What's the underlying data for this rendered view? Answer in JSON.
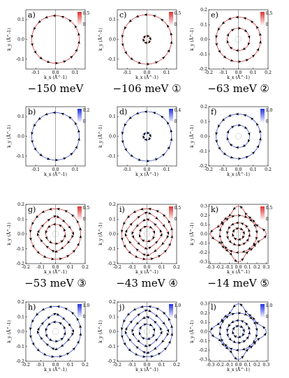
{
  "chart_data": [
    {
      "panel": "a)",
      "type": "vector-field",
      "colormap": "red",
      "colorbar": {
        "min": "0",
        "max": "0.5"
      },
      "xlim": [
        -0.15,
        0.15
      ],
      "ylim": [
        -0.15,
        0.15
      ],
      "xticks": [
        "-0.1",
        "0.0",
        "0.1"
      ],
      "yticks": [
        "-0.1",
        "0.0",
        "0.1"
      ],
      "xlabel": "k_x (Å^-1)",
      "ylabel": "k_y (Å^-1)",
      "contours": [
        {
          "shape": "circle",
          "radius": 0.12,
          "spin": "ccw",
          "arrows": 18
        }
      ],
      "vline": true
    },
    {
      "panel": "b)",
      "type": "vector-field",
      "colormap": "blue",
      "colorbar": {
        "min": "0",
        "max": "0.2"
      },
      "xlim": [
        -0.15,
        0.15
      ],
      "ylim": [
        -0.15,
        0.15
      ],
      "xticks": [
        "-0.1",
        "0.0",
        "0.1"
      ],
      "yticks": [
        "-0.1",
        "0.0",
        "0.1"
      ],
      "xlabel": "k_x (Å^-1)",
      "ylabel": "k_y (Å^-1)",
      "contours": [
        {
          "shape": "circle",
          "radius": 0.12,
          "spin": "ccw",
          "arrows": 18
        }
      ],
      "vline": true
    },
    {
      "panel": "c)",
      "type": "vector-field",
      "colormap": "red",
      "colorbar": {
        "min": "0",
        "max": "0.5"
      },
      "xlim": [
        -0.15,
        0.15
      ],
      "ylim": [
        -0.15,
        0.15
      ],
      "xticks": [
        "-0.1",
        "0.0",
        "0.1"
      ],
      "yticks": [
        "-0.1",
        "0.0",
        "0.1"
      ],
      "xlabel": "k_x (Å^-1)",
      "ylabel": "k_y (Å^-1)",
      "contours": [
        {
          "shape": "circle",
          "radius": 0.125,
          "spin": "ccw",
          "arrows": 18
        },
        {
          "shape": "circle",
          "radius": 0.017,
          "spin": "cw",
          "arrows": 6
        }
      ],
      "vline": true
    },
    {
      "panel": "d)",
      "type": "vector-field",
      "colormap": "blue",
      "colorbar": {
        "min": "0",
        "max": "0.4"
      },
      "xlim": [
        -0.15,
        0.15
      ],
      "ylim": [
        -0.15,
        0.15
      ],
      "xticks": [
        "-0.1",
        "0.0",
        "0.1"
      ],
      "yticks": [
        "-0.1",
        "0.0",
        "0.1"
      ],
      "xlabel": "k_x (Å^-1)",
      "ylabel": "k_y (Å^-1)",
      "contours": [
        {
          "shape": "circle",
          "radius": 0.125,
          "spin": "ccw",
          "arrows": 18
        },
        {
          "shape": "circle",
          "radius": 0.017,
          "spin": "cw",
          "arrows": 6
        }
      ],
      "vline": true
    },
    {
      "panel": "e)",
      "type": "vector-field",
      "colormap": "red",
      "colorbar": {
        "min": "0",
        "max": "0.5"
      },
      "xlim": [
        -0.2,
        0.2
      ],
      "ylim": [
        -0.2,
        0.2
      ],
      "xticks": [
        "-0.2",
        "-0.1",
        "0.0",
        "0.1",
        "0.2"
      ],
      "yticks": [
        "-0.2",
        "-0.1",
        "0.0",
        "0.1",
        "0.2"
      ],
      "xlabel": "k_x (Å^-1)",
      "ylabel": "k_y (Å^-1)",
      "contours": [
        {
          "shape": "circle",
          "radius": 0.15,
          "spin": "ccw",
          "arrows": 18
        },
        {
          "shape": "circle",
          "radius": 0.075,
          "spin": "cw",
          "arrows": 10
        },
        {
          "shape": "circle",
          "radius": 0.02,
          "spin": "none",
          "arrows": 0
        }
      ],
      "vline": true
    },
    {
      "panel": "f)",
      "type": "vector-field",
      "colormap": "blue",
      "colorbar": {
        "min": "0",
        "max": "1.0"
      },
      "xlim": [
        -0.2,
        0.2
      ],
      "ylim": [
        -0.2,
        0.2
      ],
      "xticks": [
        "-0.2",
        "-0.1",
        "0.0",
        "0.1",
        "0.2"
      ],
      "yticks": [
        "-0.2",
        "-0.1",
        "0.0",
        "0.1",
        "0.2"
      ],
      "xlabel": "k_x (Å^-1)",
      "ylabel": "k_y (Å^-1)",
      "contours": [
        {
          "shape": "circle",
          "radius": 0.15,
          "spin": "ccw",
          "arrows": 18
        },
        {
          "shape": "circle",
          "radius": 0.075,
          "spin": "cw",
          "arrows": 10
        },
        {
          "shape": "circle",
          "radius": 0.02,
          "spin": "none",
          "arrows": 0
        }
      ],
      "vline": false
    },
    {
      "panel": "g)",
      "type": "vector-field",
      "colormap": "red",
      "colorbar": {
        "min": "0",
        "max": "0.5"
      },
      "xlim": [
        -0.2,
        0.2
      ],
      "ylim": [
        -0.2,
        0.2
      ],
      "xticks": [
        "-0.2",
        "-0.1",
        "0.0",
        "0.1",
        "0.2"
      ],
      "yticks": [
        "-0.2",
        "-0.1",
        "0.0",
        "0.1",
        "0.2"
      ],
      "xlabel": "k_x (Å^-1)",
      "ylabel": "k_y (Å^-1)",
      "contours": [
        {
          "shape": "circle",
          "radius": 0.17,
          "spin": "ccw",
          "arrows": 20
        },
        {
          "shape": "diamond",
          "radius": 0.12,
          "spin": "cw",
          "arrows": 16
        },
        {
          "shape": "circle",
          "radius": 0.065,
          "spin": "ccw",
          "arrows": 10
        },
        {
          "shape": "circle",
          "radius": 0.02,
          "spin": "none",
          "arrows": 0
        }
      ],
      "vline": true
    },
    {
      "panel": "h)",
      "type": "vector-field",
      "colormap": "blue",
      "colorbar": {
        "min": "0",
        "max": "1.0"
      },
      "xlim": [
        -0.2,
        0.2
      ],
      "ylim": [
        -0.2,
        0.2
      ],
      "xticks": [
        "-0.2",
        "-0.1",
        "0.0",
        "0.1",
        "0.2"
      ],
      "yticks": [
        "-0.2",
        "-0.1",
        "0.0",
        "0.1",
        "0.2"
      ],
      "xlabel": "k_x (Å^-1)",
      "ylabel": "k_y (Å^-1)",
      "contours": [
        {
          "shape": "circle",
          "radius": 0.17,
          "spin": "ccw",
          "arrows": 20
        },
        {
          "shape": "diamond",
          "radius": 0.12,
          "spin": "cw",
          "arrows": 16
        },
        {
          "shape": "circle",
          "radius": 0.065,
          "spin": "ccw",
          "arrows": 10
        },
        {
          "shape": "circle",
          "radius": 0.02,
          "spin": "none",
          "arrows": 0
        }
      ],
      "vline": false
    },
    {
      "panel": "i)",
      "type": "vector-field",
      "colormap": "red",
      "colorbar": {
        "min": "0",
        "max": "0.5"
      },
      "xlim": [
        -0.2,
        0.2
      ],
      "ylim": [
        -0.2,
        0.2
      ],
      "xticks": [
        "-0.2",
        "-0.1",
        "0.0",
        "0.1",
        "0.2"
      ],
      "yticks": [
        "-0.2",
        "-0.1",
        "0.0",
        "0.1",
        "0.2"
      ],
      "xlabel": "k_x (Å^-1)",
      "ylabel": "k_y (Å^-1)",
      "contours": [
        {
          "shape": "circle",
          "radius": 0.17,
          "spin": "ccw",
          "arrows": 20
        },
        {
          "shape": "diamond",
          "radius": 0.145,
          "spin": "cw",
          "arrows": 16
        },
        {
          "shape": "diamond",
          "radius": 0.1,
          "spin": "ccw",
          "arrows": 12
        },
        {
          "shape": "circle",
          "radius": 0.05,
          "spin": "cw",
          "arrows": 8
        },
        {
          "shape": "circle",
          "radius": 0.02,
          "spin": "none",
          "arrows": 0
        }
      ],
      "vline": true
    },
    {
      "panel": "j)",
      "type": "vector-field",
      "colormap": "blue",
      "colorbar": {
        "min": "0",
        "max": "1.0"
      },
      "xlim": [
        -0.2,
        0.2
      ],
      "ylim": [
        -0.2,
        0.2
      ],
      "xticks": [
        "-0.2",
        "-0.1",
        "0.0",
        "0.1",
        "0.2"
      ],
      "yticks": [
        "-0.2",
        "-0.1",
        "0.0",
        "0.1",
        "0.2"
      ],
      "xlabel": "k_x (Å^-1)",
      "ylabel": "k_y (Å^-1)",
      "contours": [
        {
          "shape": "circle",
          "radius": 0.17,
          "spin": "ccw",
          "arrows": 20
        },
        {
          "shape": "diamond",
          "radius": 0.145,
          "spin": "cw",
          "arrows": 16
        },
        {
          "shape": "diamond",
          "radius": 0.1,
          "spin": "ccw",
          "arrows": 12
        },
        {
          "shape": "circle",
          "radius": 0.05,
          "spin": "cw",
          "arrows": 8
        },
        {
          "shape": "circle",
          "radius": 0.02,
          "spin": "none",
          "arrows": 0
        }
      ],
      "vline": true
    },
    {
      "panel": "k)",
      "type": "vector-field",
      "colormap": "red",
      "colorbar": {
        "min": "0",
        "max": "0.5"
      },
      "xlim": [
        -0.32,
        0.32
      ],
      "ylim": [
        -0.32,
        0.32
      ],
      "xticks": [
        "-0.3",
        "-0.2",
        "-0.1",
        "0.0",
        "0.1",
        "0.2",
        "0.3"
      ],
      "yticks": [
        "-0.3",
        "-0.2",
        "-0.1",
        "0.0",
        "0.1",
        "0.2",
        "0.3"
      ],
      "xlabel": "k_x (Å^-1)",
      "ylabel": "k_y (Å^-1)",
      "contours": [
        {
          "shape": "star",
          "radius": 0.3,
          "spin": "ccw",
          "arrows": 24
        },
        {
          "shape": "circle",
          "radius": 0.2,
          "spin": "cw",
          "arrows": 18
        },
        {
          "shape": "circle",
          "radius": 0.12,
          "spin": "ccw",
          "arrows": 14
        },
        {
          "shape": "circle",
          "radius": 0.06,
          "spin": "cw",
          "arrows": 8
        },
        {
          "shape": "circle",
          "radius": 0.025,
          "spin": "none",
          "arrows": 0
        }
      ],
      "vline": true
    },
    {
      "panel": "l)",
      "type": "vector-field",
      "colormap": "blue",
      "colorbar": {
        "min": "0",
        "max": "1.0"
      },
      "xlim": [
        -0.32,
        0.32
      ],
      "ylim": [
        -0.32,
        0.32
      ],
      "xticks": [
        "-0.3",
        "-0.2",
        "-0.1",
        "0.0",
        "0.1",
        "0.2",
        "0.3"
      ],
      "yticks": [
        "-0.3",
        "-0.2",
        "-0.1",
        "0.0",
        "0.1",
        "0.2",
        "0.3"
      ],
      "xlabel": "k_x (Å^-1)",
      "ylabel": "k_y (Å^-1)",
      "contours": [
        {
          "shape": "star",
          "radius": 0.3,
          "spin": "ccw",
          "arrows": 24
        },
        {
          "shape": "circle",
          "radius": 0.2,
          "spin": "cw",
          "arrows": 18
        },
        {
          "shape": "circle",
          "radius": 0.12,
          "spin": "ccw",
          "arrows": 14
        },
        {
          "shape": "circle",
          "radius": 0.06,
          "spin": "cw",
          "arrows": 8
        },
        {
          "shape": "circle",
          "radius": 0.025,
          "spin": "none",
          "arrows": 0
        }
      ],
      "vline": true
    }
  ],
  "energy_labels": [
    {
      "text": "−150 meV",
      "after": "a)"
    },
    {
      "text": "−106 meV ①",
      "after": "c)"
    },
    {
      "text": "−63 meV ②",
      "after": "e)"
    },
    {
      "text": "−53 meV ③",
      "after": "g)"
    },
    {
      "text": "−43 meV ④",
      "after": "i)"
    },
    {
      "text": "−14 meV ⑤",
      "after": "k)"
    }
  ],
  "colors": {
    "red_line": "#d23a3a",
    "blue_line": "#3a4fd6",
    "arrow": "#000000",
    "gray_ring": "#aaaaaa"
  }
}
